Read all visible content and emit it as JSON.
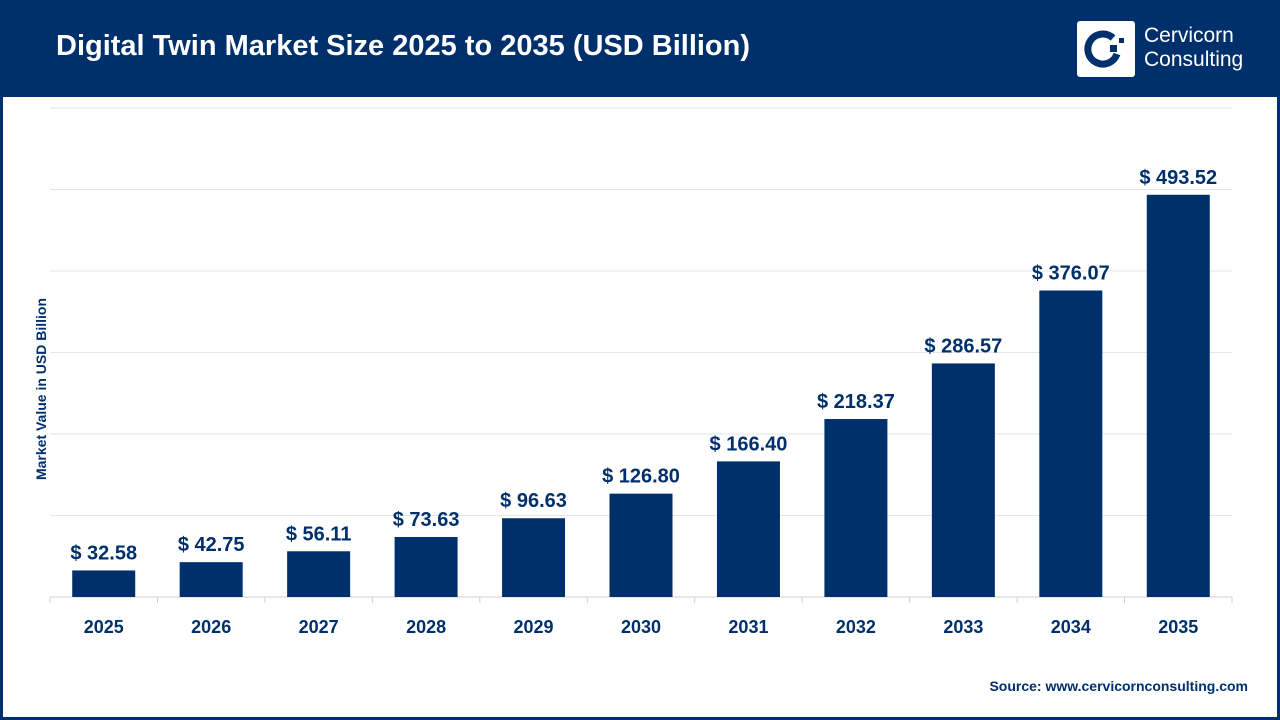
{
  "header": {
    "title": "Digital Twin Market Size 2025 to 2035 (USD Billion)",
    "logo_line1": "Cervicorn",
    "logo_line2": "Consulting"
  },
  "footer": {
    "source": "Source: www.cervicornconsulting.com"
  },
  "colors": {
    "bar": "#00306b",
    "header": "#00306b",
    "grid": "#e6e6e6"
  },
  "chart_data": {
    "type": "bar",
    "title": "Digital Twin Market Size 2025 to 2035 (USD Billion)",
    "xlabel": "",
    "ylabel": "Market Value in USD Billion",
    "ylim": [
      0,
      600
    ],
    "grid": true,
    "categories": [
      "2025",
      "2026",
      "2027",
      "2028",
      "2029",
      "2030",
      "2031",
      "2032",
      "2033",
      "2034",
      "2035"
    ],
    "values": [
      32.58,
      42.75,
      56.11,
      73.63,
      96.63,
      126.8,
      166.4,
      218.37,
      286.57,
      376.07,
      493.52
    ],
    "data_labels": [
      "$ 32.58",
      "$ 42.75",
      "$ 56.11",
      "$ 73.63",
      "$ 96.63",
      "$ 126.80",
      "$ 166.40",
      "$ 218.37",
      "$ 286.57",
      "$ 376.07",
      "$ 493.52"
    ]
  }
}
